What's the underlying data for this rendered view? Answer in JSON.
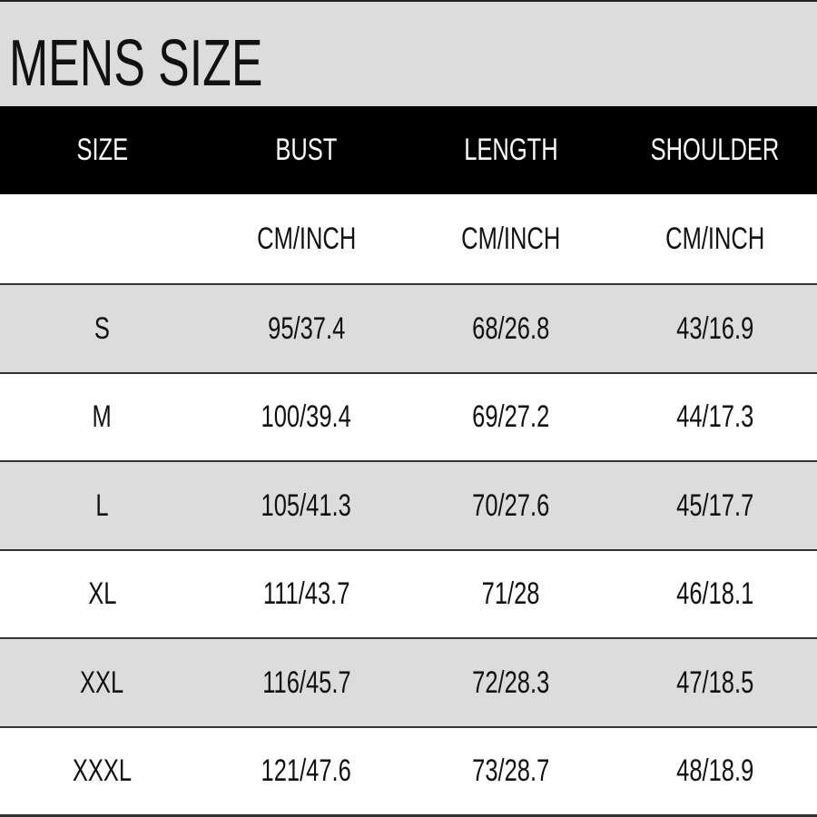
{
  "title": "MENS SIZE",
  "headers": [
    "SIZE",
    "BUST",
    "LENGTH",
    "SHOULDER"
  ],
  "units": [
    "",
    "CM/INCH",
    "CM/INCH",
    "CM/INCH"
  ],
  "rows": [
    [
      "S",
      "95/37.4",
      "68/26.8",
      "43/16.9"
    ],
    [
      "M",
      "100/39.4",
      "69/27.2",
      "44/17.3"
    ],
    [
      "L",
      "105/41.3",
      "70/27.6",
      "45/17.7"
    ],
    [
      "XL",
      "111/43.7",
      "71/28",
      "46/18.1"
    ],
    [
      "XXL",
      "116/45.7",
      "72/28.3",
      "47/18.5"
    ],
    [
      "XXXL",
      "121/47.6",
      "73/28.7",
      "48/18.9"
    ]
  ],
  "colors": {
    "header_bg": "#000000",
    "stripe": "#dcdcdc"
  }
}
